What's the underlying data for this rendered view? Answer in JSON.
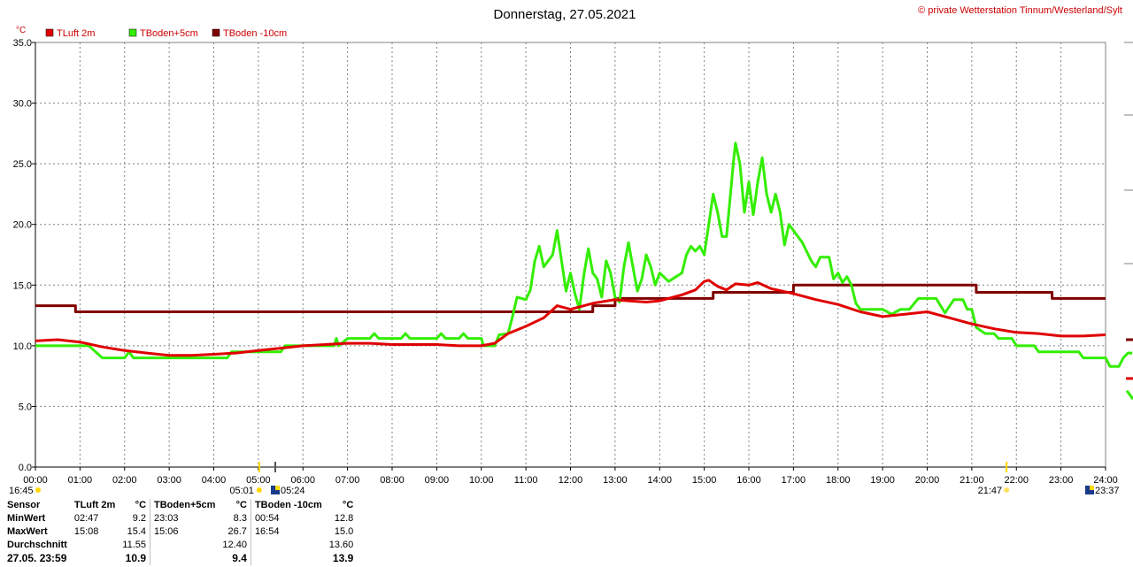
{
  "header": {
    "title": "Donnerstag, 27.05.2021",
    "copyright": "© private Wetterstation Tinnum/Westerland/Sylt"
  },
  "chart_data": {
    "type": "line",
    "y_unit": "°C",
    "ylim": [
      0,
      35
    ],
    "yticks": [
      "0.0",
      "5.0",
      "10.0",
      "15.0",
      "20.0",
      "25.0",
      "30.0",
      "35.0"
    ],
    "xlim": [
      0,
      24
    ],
    "xticks": [
      "00:00",
      "01:00",
      "02:00",
      "03:00",
      "04:00",
      "05:00",
      "06:00",
      "07:00",
      "08:00",
      "09:00",
      "10:00",
      "11:00",
      "12:00",
      "13:00",
      "14:00",
      "15:00",
      "16:00",
      "17:00",
      "18:00",
      "19:00",
      "20:00",
      "21:00",
      "22:00",
      "23:00",
      "24:00"
    ],
    "grid": true,
    "legend_position": "top-left",
    "series": [
      {
        "name": "TLuft 2m",
        "color": "#e00000",
        "points": [
          [
            0,
            10.4
          ],
          [
            0.5,
            10.5
          ],
          [
            1,
            10.3
          ],
          [
            1.5,
            9.9
          ],
          [
            2,
            9.6
          ],
          [
            2.5,
            9.4
          ],
          [
            3,
            9.2
          ],
          [
            3.5,
            9.2
          ],
          [
            4,
            9.3
          ],
          [
            4.5,
            9.4
          ],
          [
            5,
            9.6
          ],
          [
            5.5,
            9.8
          ],
          [
            6,
            10.0
          ],
          [
            6.5,
            10.1
          ],
          [
            7,
            10.2
          ],
          [
            7.5,
            10.2
          ],
          [
            8,
            10.1
          ],
          [
            8.5,
            10.1
          ],
          [
            9,
            10.1
          ],
          [
            9.5,
            10.0
          ],
          [
            10,
            10.0
          ],
          [
            10.3,
            10.2
          ],
          [
            10.6,
            11.0
          ],
          [
            11,
            11.6
          ],
          [
            11.4,
            12.3
          ],
          [
            11.7,
            13.3
          ],
          [
            12,
            13.0
          ],
          [
            12.5,
            13.5
          ],
          [
            13,
            13.8
          ],
          [
            13.3,
            13.7
          ],
          [
            13.7,
            13.6
          ],
          [
            14,
            13.7
          ],
          [
            14.5,
            14.2
          ],
          [
            14.8,
            14.6
          ],
          [
            15,
            15.3
          ],
          [
            15.1,
            15.4
          ],
          [
            15.3,
            14.9
          ],
          [
            15.5,
            14.6
          ],
          [
            15.7,
            15.1
          ],
          [
            16,
            15.0
          ],
          [
            16.2,
            15.2
          ],
          [
            16.5,
            14.7
          ],
          [
            17,
            14.3
          ],
          [
            17.5,
            13.8
          ],
          [
            18,
            13.4
          ],
          [
            18.5,
            12.8
          ],
          [
            19,
            12.4
          ],
          [
            19.5,
            12.6
          ],
          [
            20,
            12.8
          ],
          [
            20.5,
            12.3
          ],
          [
            21,
            11.8
          ],
          [
            21.5,
            11.4
          ],
          [
            22,
            11.1
          ],
          [
            22.5,
            11.0
          ],
          [
            23,
            10.8
          ],
          [
            23.5,
            10.8
          ],
          [
            24,
            10.9
          ]
        ]
      },
      {
        "name": "TBoden+5cm",
        "color": "#33ee00",
        "points": [
          [
            0,
            10.0
          ],
          [
            1.2,
            10.0
          ],
          [
            1.5,
            9.0
          ],
          [
            2,
            9.0
          ],
          [
            2.1,
            9.5
          ],
          [
            2.2,
            9.0
          ],
          [
            4.3,
            9.0
          ],
          [
            4.4,
            9.5
          ],
          [
            5.5,
            9.5
          ],
          [
            5.6,
            10.0
          ],
          [
            6.7,
            10.0
          ],
          [
            6.75,
            10.6
          ],
          [
            6.8,
            10.0
          ],
          [
            7,
            10.6
          ],
          [
            7.5,
            10.6
          ],
          [
            7.6,
            11.0
          ],
          [
            7.7,
            10.6
          ],
          [
            8.2,
            10.6
          ],
          [
            8.3,
            11.0
          ],
          [
            8.4,
            10.6
          ],
          [
            9,
            10.6
          ],
          [
            9.1,
            11.0
          ],
          [
            9.2,
            10.6
          ],
          [
            9.5,
            10.6
          ],
          [
            9.6,
            11.0
          ],
          [
            9.7,
            10.6
          ],
          [
            10,
            10.6
          ],
          [
            10.05,
            10.0
          ],
          [
            10.3,
            10.0
          ],
          [
            10.4,
            10.9
          ],
          [
            10.6,
            11.0
          ],
          [
            10.7,
            12.4
          ],
          [
            10.8,
            14.0
          ],
          [
            11,
            13.8
          ],
          [
            11.1,
            14.6
          ],
          [
            11.2,
            17.0
          ],
          [
            11.3,
            18.2
          ],
          [
            11.4,
            16.5
          ],
          [
            11.6,
            17.5
          ],
          [
            11.7,
            19.5
          ],
          [
            11.8,
            17.0
          ],
          [
            11.9,
            14.5
          ],
          [
            12,
            16.0
          ],
          [
            12.1,
            14.3
          ],
          [
            12.2,
            13.0
          ],
          [
            12.3,
            15.8
          ],
          [
            12.4,
            18.0
          ],
          [
            12.5,
            16.0
          ],
          [
            12.6,
            15.5
          ],
          [
            12.7,
            14.0
          ],
          [
            12.8,
            17.0
          ],
          [
            12.9,
            16.0
          ],
          [
            13,
            14.0
          ],
          [
            13.1,
            13.6
          ],
          [
            13.2,
            16.5
          ],
          [
            13.3,
            18.5
          ],
          [
            13.4,
            16.5
          ],
          [
            13.5,
            14.5
          ],
          [
            13.6,
            15.5
          ],
          [
            13.7,
            17.5
          ],
          [
            13.8,
            16.5
          ],
          [
            13.9,
            15.0
          ],
          [
            14,
            16.0
          ],
          [
            14.2,
            15.3
          ],
          [
            14.5,
            16.0
          ],
          [
            14.6,
            17.5
          ],
          [
            14.7,
            18.2
          ],
          [
            14.8,
            17.8
          ],
          [
            14.9,
            18.2
          ],
          [
            15,
            17.5
          ],
          [
            15.1,
            20.0
          ],
          [
            15.2,
            22.5
          ],
          [
            15.3,
            21.0
          ],
          [
            15.4,
            19.0
          ],
          [
            15.5,
            19.0
          ],
          [
            15.6,
            23.0
          ],
          [
            15.65,
            25.0
          ],
          [
            15.7,
            26.7
          ],
          [
            15.8,
            25.0
          ],
          [
            15.9,
            21.0
          ],
          [
            16,
            23.5
          ],
          [
            16.1,
            20.8
          ],
          [
            16.2,
            23.5
          ],
          [
            16.3,
            25.5
          ],
          [
            16.4,
            22.5
          ],
          [
            16.5,
            21.0
          ],
          [
            16.6,
            22.5
          ],
          [
            16.7,
            21.0
          ],
          [
            16.8,
            18.3
          ],
          [
            16.9,
            20.0
          ],
          [
            17,
            19.5
          ],
          [
            17.2,
            18.5
          ],
          [
            17.4,
            17.0
          ],
          [
            17.5,
            16.5
          ],
          [
            17.6,
            17.3
          ],
          [
            17.8,
            17.3
          ],
          [
            17.9,
            15.5
          ],
          [
            18,
            16.0
          ],
          [
            18.1,
            15.2
          ],
          [
            18.2,
            15.7
          ],
          [
            18.3,
            15.0
          ],
          [
            18.4,
            13.5
          ],
          [
            18.5,
            13.0
          ],
          [
            19,
            13.0
          ],
          [
            19.2,
            12.6
          ],
          [
            19.4,
            13.0
          ],
          [
            19.6,
            13.0
          ],
          [
            19.8,
            13.9
          ],
          [
            20.2,
            13.9
          ],
          [
            20.4,
            12.7
          ],
          [
            20.6,
            13.8
          ],
          [
            20.8,
            13.8
          ],
          [
            20.9,
            13.0
          ],
          [
            21,
            13.0
          ],
          [
            21.1,
            11.5
          ],
          [
            21.3,
            11.0
          ],
          [
            21.5,
            11.0
          ],
          [
            21.6,
            10.6
          ],
          [
            21.9,
            10.6
          ],
          [
            22,
            10.0
          ],
          [
            22.4,
            10.0
          ],
          [
            22.5,
            9.5
          ],
          [
            23.4,
            9.5
          ],
          [
            23.5,
            9.0
          ],
          [
            24,
            9.0
          ],
          [
            24.1,
            8.3
          ],
          [
            24.3,
            8.3
          ],
          [
            24.4,
            9.0
          ],
          [
            24.5,
            9.4
          ],
          [
            24.6,
            9.4
          ]
        ]
      },
      {
        "name": "TBoden -10cm",
        "color": "#800000",
        "points": [
          [
            0,
            13.3
          ],
          [
            0.9,
            13.3
          ],
          [
            0.9,
            12.8
          ],
          [
            12.5,
            12.8
          ],
          [
            12.5,
            13.3
          ],
          [
            13,
            13.3
          ],
          [
            13,
            13.9
          ],
          [
            15.2,
            13.9
          ],
          [
            15.2,
            14.4
          ],
          [
            17,
            14.4
          ],
          [
            17,
            15.0
          ],
          [
            21.1,
            15.0
          ],
          [
            21.1,
            14.4
          ],
          [
            22.8,
            14.4
          ],
          [
            22.8,
            13.9
          ],
          [
            24,
            13.9
          ]
        ]
      }
    ]
  },
  "sun": {
    "events": [
      {
        "time": "16:45",
        "hour": 0
      },
      {
        "time": "05:01",
        "hour": 5.02
      },
      {
        "time": "05:24",
        "hour": 5.4
      },
      {
        "time": "21:47",
        "hour": 21.78
      },
      {
        "time": "23:37",
        "hour": 23.62
      }
    ]
  },
  "stats": {
    "headers": {
      "sensor": "Sensor",
      "s1": "TLuft 2m",
      "u1": "°C",
      "s2": "TBoden+5cm",
      "u2": "°C",
      "s3": "TBoden -10cm",
      "u3": "°C"
    },
    "rows": [
      {
        "label": "MinWert",
        "t1": "02:47",
        "v1": "9.2",
        "t2": "23:03",
        "v2": "8.3",
        "t3": "00:54",
        "v3": "12.8"
      },
      {
        "label": "MaxWert",
        "t1": "15:08",
        "v1": "15.4",
        "t2": "15:06",
        "v2": "26.7",
        "t3": "16:54",
        "v3": "15.0"
      },
      {
        "label": "Durchschnitt",
        "t1": "",
        "v1": "11.55",
        "t2": "",
        "v2": "12.40",
        "t3": "",
        "v3": "13.60"
      }
    ],
    "current": {
      "label": "27.05. 23:59",
      "v1": "10.9",
      "v2": "9.4",
      "v3": "13.9"
    }
  }
}
